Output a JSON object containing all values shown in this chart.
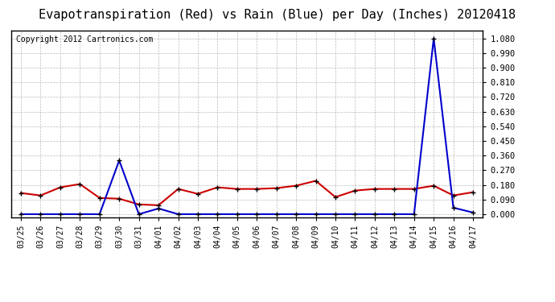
{
  "title": "Evapotranspiration (Red) vs Rain (Blue) per Day (Inches) 20120418",
  "copyright": "Copyright 2012 Cartronics.com",
  "labels": [
    "03/25",
    "03/26",
    "03/27",
    "03/28",
    "03/29",
    "03/30",
    "03/31",
    "04/01",
    "04/02",
    "04/03",
    "04/04",
    "04/05",
    "04/06",
    "04/07",
    "04/08",
    "04/09",
    "04/10",
    "04/11",
    "04/12",
    "04/13",
    "04/14",
    "04/15",
    "04/16",
    "04/17"
  ],
  "red_data": [
    0.13,
    0.115,
    0.165,
    0.185,
    0.1,
    0.095,
    0.06,
    0.055,
    0.155,
    0.125,
    0.165,
    0.155,
    0.155,
    0.16,
    0.175,
    0.205,
    0.105,
    0.145,
    0.155,
    0.155,
    0.155,
    0.175,
    0.115,
    0.135
  ],
  "blue_data": [
    0.0,
    0.0,
    0.0,
    0.0,
    0.0,
    0.33,
    0.0,
    0.035,
    0.0,
    0.0,
    0.0,
    0.0,
    0.0,
    0.0,
    0.0,
    0.0,
    0.0,
    0.0,
    0.0,
    0.0,
    0.0,
    1.08,
    0.04,
    0.01
  ],
  "red_color": "#cc0000",
  "blue_color": "#0000cc",
  "bg_color": "#ffffff",
  "grid_color": "#bbbbbb",
  "yticks": [
    0.0,
    0.09,
    0.18,
    0.27,
    0.36,
    0.45,
    0.54,
    0.63,
    0.72,
    0.81,
    0.9,
    0.99,
    1.08
  ],
  "ylim": [
    -0.02,
    1.13
  ],
  "title_fontsize": 11,
  "copyright_fontsize": 7
}
